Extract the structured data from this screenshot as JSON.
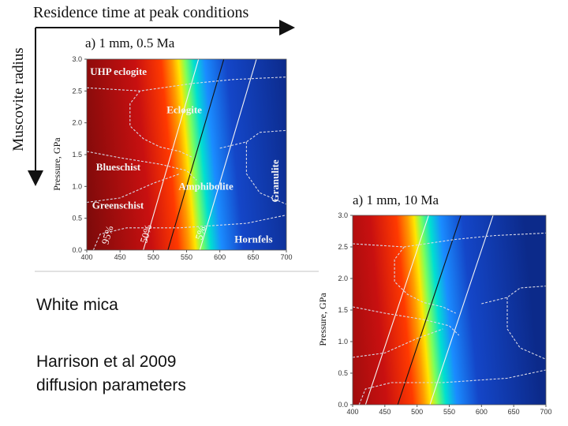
{
  "header": {
    "title": "Residence time at peak conditions",
    "side_label": "Muscovite radius"
  },
  "caption": {
    "line1": "White mica",
    "line2": "Harrison et al 2009",
    "line3": "diffusion parameters"
  },
  "chart_data": [
    {
      "type": "heatmap",
      "title": "a) 1 mm, 0.5 Ma",
      "xlabel": "",
      "ylabel": "Pressure, GPa",
      "xlim": [
        400,
        700
      ],
      "ylim": [
        0.0,
        3.0
      ],
      "x_ticks": [
        "400",
        "450",
        "500",
        "550",
        "600",
        "650",
        "700"
      ],
      "y_ticks": [
        "0.0",
        "0.5",
        "1.0",
        "1.5",
        "2.0",
        "2.5",
        "3.0"
      ],
      "gradient_center_T": [
        [
          520,
          0.0
        ],
        [
          605,
          3.0
        ]
      ],
      "contours": [
        {
          "label": "95%",
          "T_bottom": 485,
          "T_top": 568
        },
        {
          "label": "50%",
          "T_bottom": 522,
          "T_top": 606
        },
        {
          "label": "5%",
          "T_bottom": 570,
          "T_top": 655
        }
      ],
      "facies": [
        "UHP eclogite",
        "Eclogite",
        "Blueschist",
        "Amphibolite",
        "Greenschist",
        "Granulite",
        "Hornfels"
      ],
      "colors": {
        "hot": "#7a0a0a",
        "mid": "#ffe600",
        "cold": "#0c2a8a"
      }
    },
    {
      "type": "heatmap",
      "title": "a) 1 mm, 10 Ma",
      "xlabel": "",
      "ylabel": "Pressure, GPa",
      "xlim": [
        400,
        700
      ],
      "ylim": [
        0.0,
        3.0
      ],
      "x_ticks": [
        "400",
        "450",
        "500",
        "550",
        "600",
        "650",
        "700"
      ],
      "y_ticks": [
        "0.0",
        "0.5",
        "1.0",
        "1.5",
        "2.0",
        "2.5",
        "3.0"
      ],
      "gradient_center_T": [
        [
          470,
          0.0
        ],
        [
          570,
          3.0
        ]
      ],
      "contours": [
        {
          "label": "",
          "T_bottom": 420,
          "T_top": 518
        },
        {
          "label": "",
          "T_bottom": 470,
          "T_top": 568
        },
        {
          "label": "",
          "T_bottom": 520,
          "T_top": 618
        }
      ],
      "colors": {
        "hot": "#7a0a0a",
        "mid": "#ffe600",
        "cold": "#0c2a8a"
      }
    }
  ]
}
